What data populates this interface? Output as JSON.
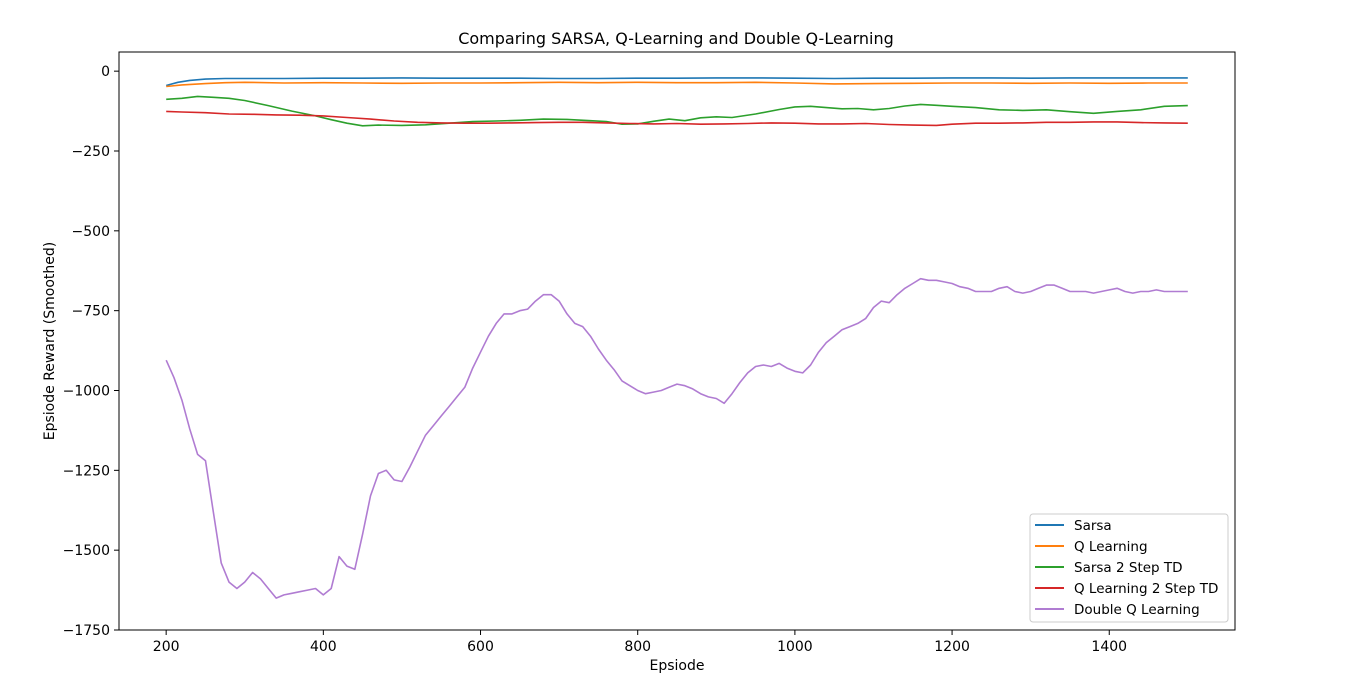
{
  "chart_data": {
    "type": "line",
    "title": "Comparing SARSA, Q-Learning and Double Q-Learning",
    "xlabel": "Epsiode",
    "ylabel": "Epsiode Reward (Smoothed)",
    "xlim": [
      140,
      1560
    ],
    "ylim": [
      -1750,
      60
    ],
    "xticks": [
      200,
      400,
      600,
      800,
      1000,
      1200,
      1400
    ],
    "yticks": [
      0,
      -250,
      -500,
      -750,
      -1000,
      -1250,
      -1500,
      -1750
    ],
    "xtick_labels": [
      "200",
      "400",
      "600",
      "800",
      "1000",
      "1200",
      "1400"
    ],
    "ytick_labels": [
      "0",
      "−250",
      "−500",
      "−750",
      "−1000",
      "−1250",
      "−1500",
      "−1750"
    ],
    "grid": false,
    "legend_position": "lower-right",
    "series": [
      {
        "name": "Sarsa",
        "color": "#1f77b4",
        "x": [
          200,
          215,
          230,
          250,
          275,
          300,
          350,
          400,
          450,
          500,
          550,
          600,
          650,
          700,
          750,
          800,
          850,
          900,
          950,
          1000,
          1050,
          1100,
          1150,
          1200,
          1250,
          1300,
          1350,
          1400,
          1450,
          1500
        ],
        "y": [
          -45,
          -35,
          -29,
          -25,
          -23,
          -23,
          -23,
          -22,
          -22,
          -21,
          -22,
          -22,
          -22,
          -23,
          -23,
          -22,
          -22,
          -21,
          -21,
          -22,
          -23,
          -22,
          -22,
          -21,
          -21,
          -22,
          -21,
          -21,
          -21,
          -21
        ]
      },
      {
        "name": "Q Learning",
        "color": "#ff7f0e",
        "x": [
          200,
          220,
          250,
          275,
          300,
          350,
          400,
          450,
          500,
          550,
          600,
          650,
          700,
          750,
          800,
          850,
          900,
          950,
          1000,
          1050,
          1100,
          1150,
          1200,
          1250,
          1300,
          1350,
          1400,
          1450,
          1500
        ],
        "y": [
          -48,
          -43,
          -39,
          -36,
          -35,
          -37,
          -36,
          -37,
          -38,
          -37,
          -37,
          -36,
          -35,
          -36,
          -35,
          -36,
          -36,
          -35,
          -37,
          -40,
          -39,
          -38,
          -37,
          -37,
          -38,
          -37,
          -38,
          -37,
          -37
        ]
      },
      {
        "name": "Sarsa 2 Step TD",
        "color": "#2ca02c",
        "x": [
          200,
          220,
          240,
          260,
          280,
          300,
          330,
          360,
          390,
          410,
          430,
          450,
          470,
          500,
          530,
          560,
          590,
          620,
          650,
          680,
          710,
          740,
          760,
          780,
          800,
          820,
          840,
          860,
          880,
          900,
          920,
          950,
          980,
          1000,
          1020,
          1040,
          1060,
          1080,
          1100,
          1120,
          1140,
          1160,
          1180,
          1200,
          1230,
          1260,
          1290,
          1320,
          1350,
          1380,
          1410,
          1440,
          1470,
          1500
        ],
        "y": [
          -88,
          -85,
          -79,
          -82,
          -85,
          -92,
          -108,
          -125,
          -140,
          -152,
          -163,
          -171,
          -169,
          -170,
          -168,
          -163,
          -158,
          -156,
          -154,
          -150,
          -151,
          -155,
          -158,
          -166,
          -165,
          -157,
          -150,
          -155,
          -146,
          -143,
          -145,
          -134,
          -120,
          -112,
          -110,
          -114,
          -118,
          -117,
          -121,
          -117,
          -109,
          -104,
          -107,
          -110,
          -114,
          -121,
          -123,
          -121,
          -127,
          -132,
          -126,
          -121,
          -110,
          -108
        ]
      },
      {
        "name": "Q Learning 2 Step TD",
        "color": "#d62728",
        "x": [
          200,
          220,
          250,
          280,
          310,
          340,
          370,
          400,
          430,
          460,
          490,
          520,
          550,
          580,
          610,
          640,
          670,
          700,
          730,
          760,
          790,
          820,
          850,
          880,
          910,
          940,
          970,
          1000,
          1030,
          1060,
          1090,
          1120,
          1150,
          1180,
          1200,
          1230,
          1260,
          1290,
          1320,
          1350,
          1380,
          1410,
          1440,
          1470,
          1500
        ],
        "y": [
          -126,
          -128,
          -130,
          -134,
          -135,
          -137,
          -138,
          -140,
          -145,
          -150,
          -156,
          -160,
          -162,
          -163,
          -163,
          -162,
          -161,
          -160,
          -160,
          -162,
          -164,
          -165,
          -164,
          -166,
          -165,
          -164,
          -162,
          -163,
          -165,
          -165,
          -164,
          -167,
          -169,
          -170,
          -166,
          -163,
          -163,
          -162,
          -160,
          -160,
          -159,
          -159,
          -161,
          -162,
          -163
        ]
      },
      {
        "name": "Double Q Learning",
        "color": "#b07cd2",
        "x": [
          200,
          210,
          220,
          230,
          240,
          250,
          260,
          270,
          280,
          290,
          300,
          310,
          320,
          330,
          340,
          350,
          360,
          370,
          380,
          390,
          400,
          410,
          420,
          430,
          440,
          450,
          460,
          470,
          480,
          490,
          500,
          510,
          520,
          530,
          540,
          550,
          560,
          570,
          580,
          590,
          600,
          610,
          620,
          630,
          640,
          650,
          660,
          670,
          680,
          690,
          700,
          710,
          720,
          730,
          740,
          750,
          760,
          770,
          780,
          790,
          800,
          810,
          820,
          830,
          840,
          850,
          860,
          870,
          880,
          890,
          900,
          910,
          920,
          930,
          940,
          950,
          960,
          970,
          980,
          990,
          1000,
          1010,
          1020,
          1030,
          1040,
          1050,
          1060,
          1070,
          1080,
          1090,
          1100,
          1110,
          1120,
          1130,
          1140,
          1150,
          1160,
          1170,
          1180,
          1190,
          1200,
          1210,
          1220,
          1230,
          1240,
          1250,
          1260,
          1270,
          1280,
          1290,
          1300,
          1310,
          1320,
          1330,
          1340,
          1350,
          1360,
          1370,
          1380,
          1390,
          1400,
          1410,
          1420,
          1430,
          1440,
          1450,
          1460,
          1470,
          1480,
          1490,
          1500
        ],
        "y": [
          -905,
          -960,
          -1030,
          -1120,
          -1200,
          -1220,
          -1380,
          -1540,
          -1600,
          -1620,
          -1600,
          -1570,
          -1590,
          -1620,
          -1650,
          -1640,
          -1635,
          -1630,
          -1625,
          -1620,
          -1640,
          -1620,
          -1520,
          -1550,
          -1560,
          -1450,
          -1330,
          -1260,
          -1250,
          -1280,
          -1285,
          -1240,
          -1190,
          -1140,
          -1110,
          -1080,
          -1050,
          -1020,
          -990,
          -930,
          -880,
          -830,
          -790,
          -760,
          -760,
          -750,
          -745,
          -720,
          -700,
          -700,
          -720,
          -760,
          -790,
          -800,
          -830,
          -870,
          -905,
          -935,
          -970,
          -985,
          -1000,
          -1010,
          -1005,
          -1000,
          -990,
          -980,
          -985,
          -995,
          -1010,
          -1020,
          -1025,
          -1040,
          -1010,
          -975,
          -945,
          -925,
          -920,
          -925,
          -915,
          -930,
          -940,
          -945,
          -920,
          -880,
          -850,
          -830,
          -810,
          -800,
          -790,
          -775,
          -740,
          -720,
          -725,
          -700,
          -680,
          -665,
          -650,
          -655,
          -655,
          -660,
          -665,
          -675,
          -680,
          -690,
          -690,
          -690,
          -680,
          -675,
          -690,
          -695,
          -690,
          -680,
          -670,
          -670,
          -680,
          -690,
          -690,
          -690,
          -695,
          -690,
          -685,
          -680,
          -690,
          -695,
          -690,
          -690,
          -685,
          -690,
          -690,
          -690,
          -690
        ]
      }
    ]
  }
}
